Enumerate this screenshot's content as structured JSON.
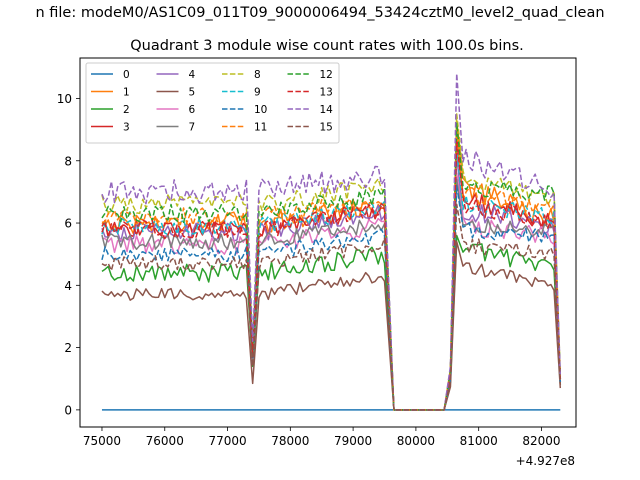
{
  "figure": {
    "suptitle": "n file: modeM0/AS1C09_011T09_9000006494_53424cztM0_level2_quad_clean"
  },
  "chart_data": {
    "type": "line",
    "title": "Quadrant 3 module wise count rates with 100.0s bins.",
    "xlabel": "",
    "ylabel": "",
    "x_offset_label": "+4.927e8",
    "xlim": [
      74650,
      82550
    ],
    "ylim": [
      -0.55,
      11.3
    ],
    "xticks": [
      75000,
      76000,
      77000,
      78000,
      79000,
      80000,
      81000,
      82000
    ],
    "xtick_labels": [
      "75000",
      "76000",
      "77000",
      "78000",
      "79000",
      "80000",
      "81000",
      "82000"
    ],
    "yticks": [
      0,
      2,
      4,
      6,
      8,
      10
    ],
    "ytick_labels": [
      "0",
      "2",
      "4",
      "6",
      "8",
      "10"
    ],
    "grid": false,
    "legend_position": "top-left",
    "legend_columns": 4,
    "segments": {
      "seg1_x": [
        75000,
        77300
      ],
      "dip1_x": 77400,
      "seg2_x": [
        77500,
        79500
      ],
      "zero_x": [
        79650,
        80450
      ],
      "ramp_x": 80550,
      "peak_x": 80650,
      "seg3_x": [
        80750,
        82200
      ],
      "end_x": 82300
    },
    "series": [
      {
        "name": "0",
        "color": "#1f77b4",
        "dashed": false,
        "level": 0.0,
        "dip": 0.0,
        "peak": 0.0,
        "after": 0.0,
        "end_level": 0.0,
        "tail": 0.0,
        "noise": 0.0
      },
      {
        "name": "1",
        "color": "#ff7f0e",
        "dashed": false,
        "level": 6.0,
        "dip": 1.8,
        "peak": 9.3,
        "after": 7.2,
        "end_level": 6.1,
        "tail": 1.0,
        "noise": 0.35
      },
      {
        "name": "2",
        "color": "#2ca02c",
        "dashed": false,
        "level": 4.4,
        "dip": 1.4,
        "peak": 5.6,
        "after": 5.2,
        "end_level": 4.6,
        "tail": 0.8,
        "noise": 0.3
      },
      {
        "name": "3",
        "color": "#d62728",
        "dashed": false,
        "level": 5.8,
        "dip": 1.6,
        "peak": 8.8,
        "after": 6.8,
        "end_level": 6.0,
        "tail": 1.0,
        "noise": 0.3
      },
      {
        "name": "4",
        "color": "#9467bd",
        "dashed": false,
        "level": 5.7,
        "dip": 1.7,
        "peak": 8.2,
        "after": 6.4,
        "end_level": 5.9,
        "tail": 1.0,
        "noise": 0.3
      },
      {
        "name": "5",
        "color": "#8c564b",
        "dashed": false,
        "level": 3.7,
        "dip": 0.85,
        "peak": 5.4,
        "after": 4.6,
        "end_level": 4.0,
        "tail": 0.7,
        "noise": 0.2
      },
      {
        "name": "6",
        "color": "#e377c2",
        "dashed": false,
        "level": 5.3,
        "dip": 1.5,
        "peak": 7.6,
        "after": 5.9,
        "end_level": 5.6,
        "tail": 0.9,
        "noise": 0.3
      },
      {
        "name": "7",
        "color": "#7f7f7f",
        "dashed": false,
        "level": 5.4,
        "dip": 1.6,
        "peak": 7.4,
        "after": 6.0,
        "end_level": 5.7,
        "tail": 0.9,
        "noise": 0.25
      },
      {
        "name": "8",
        "color": "#bcbd22",
        "dashed": true,
        "level": 6.6,
        "dip": 2.0,
        "peak": 9.5,
        "after": 7.5,
        "end_level": 6.8,
        "tail": 1.1,
        "noise": 0.3
      },
      {
        "name": "9",
        "color": "#17becf",
        "dashed": true,
        "level": 5.9,
        "dip": 1.8,
        "peak": 8.4,
        "after": 6.6,
        "end_level": 6.2,
        "tail": 1.0,
        "noise": 0.3
      },
      {
        "name": "10",
        "color": "#1f77b4",
        "dashed": true,
        "level": 5.0,
        "dip": 1.5,
        "peak": 7.2,
        "after": 5.8,
        "end_level": 5.5,
        "tail": 0.9,
        "noise": 0.25
      },
      {
        "name": "11",
        "color": "#ff7f0e",
        "dashed": true,
        "level": 6.2,
        "dip": 1.9,
        "peak": 9.0,
        "after": 7.0,
        "end_level": 6.5,
        "tail": 1.0,
        "noise": 0.3
      },
      {
        "name": "12",
        "color": "#2ca02c",
        "dashed": true,
        "level": 6.3,
        "dip": 1.9,
        "peak": 9.2,
        "after": 7.2,
        "end_level": 6.9,
        "tail": 1.0,
        "noise": 0.3
      },
      {
        "name": "13",
        "color": "#d62728",
        "dashed": true,
        "level": 5.8,
        "dip": 1.7,
        "peak": 8.6,
        "after": 6.6,
        "end_level": 6.0,
        "tail": 1.0,
        "noise": 0.3
      },
      {
        "name": "14",
        "color": "#9467bd",
        "dashed": true,
        "level": 7.0,
        "dip": 2.2,
        "peak": 10.8,
        "after": 8.1,
        "end_level": 7.0,
        "tail": 1.1,
        "noise": 0.4
      },
      {
        "name": "15",
        "color": "#8c564b",
        "dashed": true,
        "level": 4.7,
        "dip": 1.4,
        "peak": 6.6,
        "after": 5.3,
        "end_level": 5.0,
        "tail": 0.8,
        "noise": 0.25
      }
    ]
  }
}
